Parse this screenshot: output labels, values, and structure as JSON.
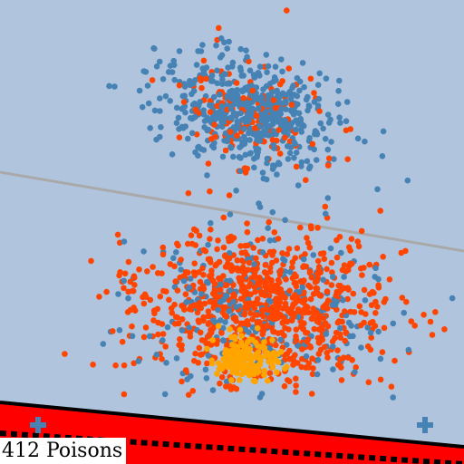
{
  "scene": {
    "background_color": "#b0c4de",
    "boundary_line_color": "#a9a9a9",
    "blue_point_color": "#4682b4",
    "orange_point_color": "#ff4500",
    "poison_point_color": "#ffa500",
    "danger_zone_color": "#ff0000",
    "danger_zone_border_color": "#000000",
    "marker_icon": "plus-icon"
  },
  "hud": {
    "poison_count": 412,
    "label": "412 Poisons"
  }
}
